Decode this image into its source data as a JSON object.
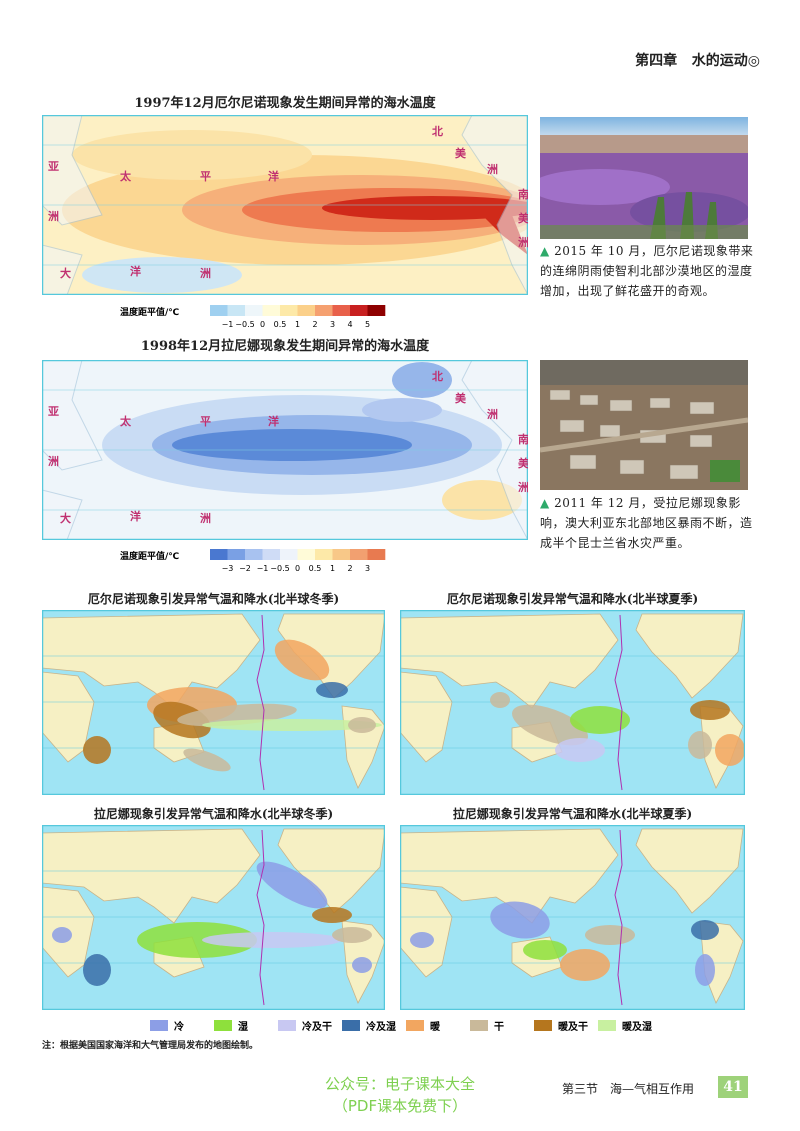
{
  "header": {
    "chapter": "第四章",
    "title": "水的运动"
  },
  "sst_maps": [
    {
      "title": "1997年12月厄尔尼诺现象发生期间异常的海水温度",
      "labels": [
        "北",
        "美",
        "洲",
        "南",
        "美",
        "洲",
        "亚",
        "洲",
        "太",
        "平",
        "洋",
        "大",
        "洋",
        "洲"
      ],
      "legend": {
        "label": "温度距平值/℃",
        "ticks": [
          "−1",
          "−0.5",
          "0",
          "0.5",
          "1",
          "2",
          "3",
          "4",
          "5"
        ]
      }
    },
    {
      "title": "1998年12月拉尼娜现象发生期间异常的海水温度",
      "labels": [
        "北",
        "美",
        "洲",
        "南",
        "美",
        "洲",
        "亚",
        "洲",
        "太",
        "平",
        "洋",
        "大",
        "洋",
        "洲"
      ],
      "legend": {
        "label": "温度距平值/℃",
        "ticks": [
          "−3",
          "−2",
          "−1",
          "−0.5",
          "0",
          "0.5",
          "1",
          "2",
          "3"
        ]
      }
    }
  ],
  "photos": [
    {
      "caption": "2015 年 10 月，厄尔尼诺现象带来的连绵阴雨使智利北部沙漠地区的湿度增加，出现了鲜花盛开的奇观。"
    },
    {
      "caption": "2011 年 12 月，受拉尼娜现象影响，澳大利亚东北部地区暴雨不断，造成半个昆士兰省水灾严重。"
    }
  ],
  "world_maps": [
    {
      "title": "厄尔尼诺现象引发异常气温和降水(北半球冬季)"
    },
    {
      "title": "厄尔尼诺现象引发异常气温和降水(北半球夏季)"
    },
    {
      "title": "拉尼娜现象引发异常气温和降水(北半球冬季)"
    },
    {
      "title": "拉尼娜现象引发异常气温和降水(北半球夏季)"
    }
  ],
  "legend": [
    {
      "label": "冷",
      "color": "#8c9ee6"
    },
    {
      "label": "湿",
      "color": "#8ee03c"
    },
    {
      "label": "冷及干",
      "color": "#c8c8f2"
    },
    {
      "label": "冷及湿",
      "color": "#3a6ea8"
    },
    {
      "label": "暖",
      "color": "#f2a660"
    },
    {
      "label": "干",
      "color": "#c9b99a"
    },
    {
      "label": "暖及干",
      "color": "#b5761e"
    },
    {
      "label": "暖及湿",
      "color": "#c8f0a0"
    }
  ],
  "note": "注：根据美国国家海洋和大气管理局发布的地图绘制。",
  "footer": {
    "section": "第三节　海—气相互作用",
    "page": "41",
    "watermark": [
      "公众号：电子课本大全",
      "（PDF课本免费下）"
    ]
  }
}
